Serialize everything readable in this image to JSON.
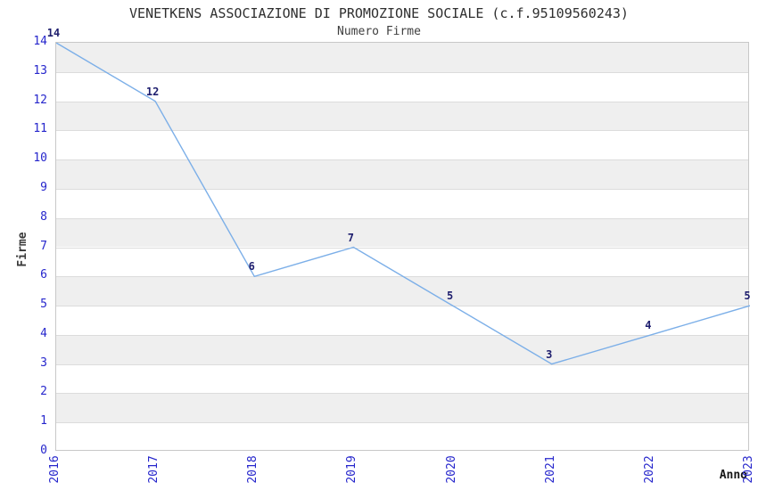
{
  "figure": {
    "title": "VENETKENS ASSOCIAZIONE DI PROMOZIONE SOCIALE (c.f.95109560243)",
    "subtitle": "Numero Firme"
  },
  "chart_data": {
    "type": "line",
    "title": "VENETKENS ASSOCIAZIONE DI PROMOZIONE SOCIALE (c.f.95109560243)",
    "subtitle": "Numero Firme",
    "xlabel": "Anno",
    "ylabel": "Firme",
    "categories": [
      "2016",
      "2017",
      "2018",
      "2019",
      "2020",
      "2021",
      "2022",
      "2023"
    ],
    "values": [
      14,
      12,
      6,
      7,
      5,
      3,
      4,
      5
    ],
    "ylim": [
      0,
      14
    ],
    "ytick_step": 1,
    "yticks": [
      0,
      1,
      2,
      3,
      4,
      5,
      6,
      7,
      8,
      9,
      10,
      11,
      12,
      13,
      14
    ],
    "grid": "horizontal-bands-alternating",
    "legend": "none",
    "markers": "none",
    "data_labels_visible": true,
    "colors": {
      "line": "#7cafe8",
      "tick_label": "#2626cc",
      "data_label": "#1e1e6e",
      "band": "#efefef",
      "grid_line": "#dcdcdc",
      "plot_border": "#c8c8c8",
      "title": "#2f2f2f",
      "subtitle": "#3f3f3f",
      "ylabel_color": "#3a3a3a",
      "xlabel_color": "#161616",
      "background": "#ffffff"
    }
  }
}
